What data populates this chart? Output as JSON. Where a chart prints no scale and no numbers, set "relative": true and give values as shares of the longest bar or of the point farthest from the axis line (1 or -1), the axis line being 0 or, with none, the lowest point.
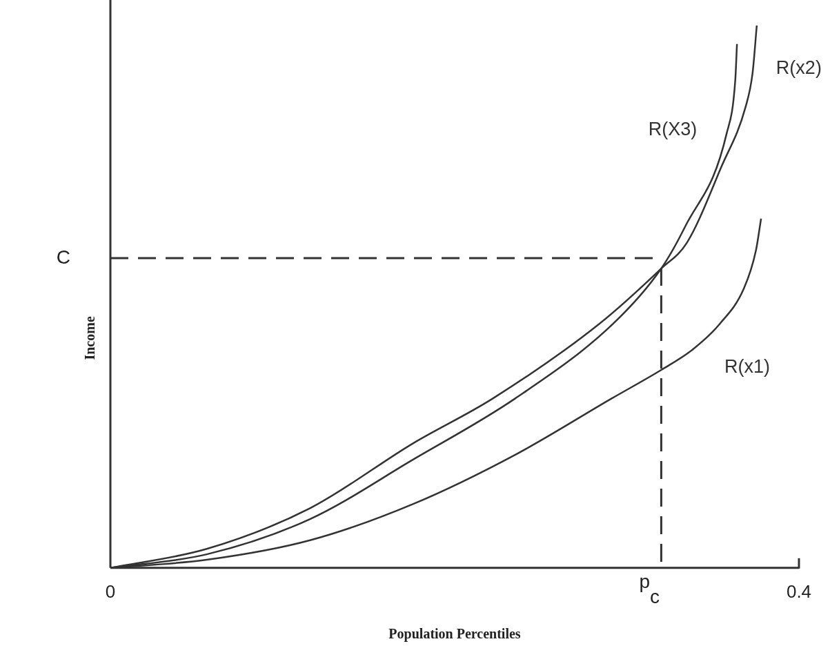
{
  "chart_data": {
    "type": "line",
    "xlabel": "Population Percentiles",
    "ylabel": "Income",
    "relative": true,
    "xlim": [
      0,
      0.4
    ],
    "xticks": [
      0,
      0.4
    ],
    "tick_labels": "x",
    "grid": false,
    "legend": false,
    "marker": "none",
    "line_style": "solid",
    "series": [
      {
        "name": "R(x1)",
        "color": "#333333",
        "x": [
          0,
          0.056,
          0.116,
          0.176,
          0.236,
          0.291,
          0.32,
          0.338,
          0.354,
          0.368,
          0.375,
          0.378
        ],
        "values": [
          0,
          0.015,
          0.051,
          0.118,
          0.21,
          0.312,
          0.365,
          0.402,
          0.45,
          0.515,
          0.585,
          0.644
        ]
      },
      {
        "name": "R(x2)",
        "color": "#333333",
        "x": [
          0,
          0.056,
          0.116,
          0.176,
          0.222,
          0.284,
          0.32,
          0.335,
          0.355,
          0.369,
          0.373,
          0.3755
        ],
        "values": [
          0,
          0.035,
          0.11,
          0.23,
          0.312,
          0.45,
          0.552,
          0.6,
          0.74,
          0.85,
          0.911,
          1
        ]
      },
      {
        "name": "R(X3)",
        "color": "#333333",
        "x": [
          0,
          0.056,
          0.116,
          0.176,
          0.235,
          0.292,
          0.32,
          0.334,
          0.358,
          0.363,
          0.364
        ],
        "values": [
          0,
          0.025,
          0.09,
          0.2,
          0.312,
          0.45,
          0.552,
          0.63,
          0.801,
          0.899,
          0.966
        ]
      }
    ],
    "ref_lines": [
      {
        "axis": "y",
        "value": 0.571,
        "label": "C",
        "line_style": "dashed"
      },
      {
        "axis": "x",
        "value": 0.32,
        "label": "p$_{c}$",
        "line_style": "dashed"
      }
    ]
  }
}
